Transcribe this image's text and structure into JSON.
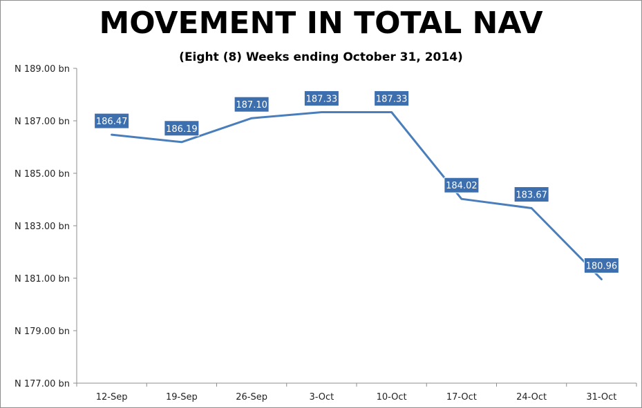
{
  "chart_data": {
    "type": "line",
    "title": "MOVEMENT IN TOTAL NAV",
    "subtitle": "(Eight (8) Weeks ending October 31, 2014)",
    "categories": [
      "12-Sep",
      "19-Sep",
      "26-Sep",
      "3-Oct",
      "10-Oct",
      "17-Oct",
      "24-Oct",
      "31-Oct"
    ],
    "series": [
      {
        "values": [
          186.47,
          186.19,
          187.1,
          187.33,
          187.33,
          184.02,
          183.67,
          180.96
        ]
      }
    ],
    "data_labels": [
      "186.47",
      "186.19",
      "187.10",
      "187.33",
      "187.33",
      "184.02",
      "183.67",
      "180.96"
    ],
    "ylim": [
      177,
      189
    ],
    "y_ticks": [
      177,
      179,
      181,
      183,
      185,
      187,
      189
    ],
    "y_tick_labels": [
      "N 177.00 bn",
      "N 179.00 bn",
      "N 181.00 bn",
      "N 183.00 bn",
      "N 185.00 bn",
      "N 187.00 bn",
      "N 189.00 bn"
    ],
    "xlabel": "",
    "ylabel": "",
    "grid": false,
    "line_color": "#4a7ebb",
    "label_box_color": "#3d6fae"
  }
}
